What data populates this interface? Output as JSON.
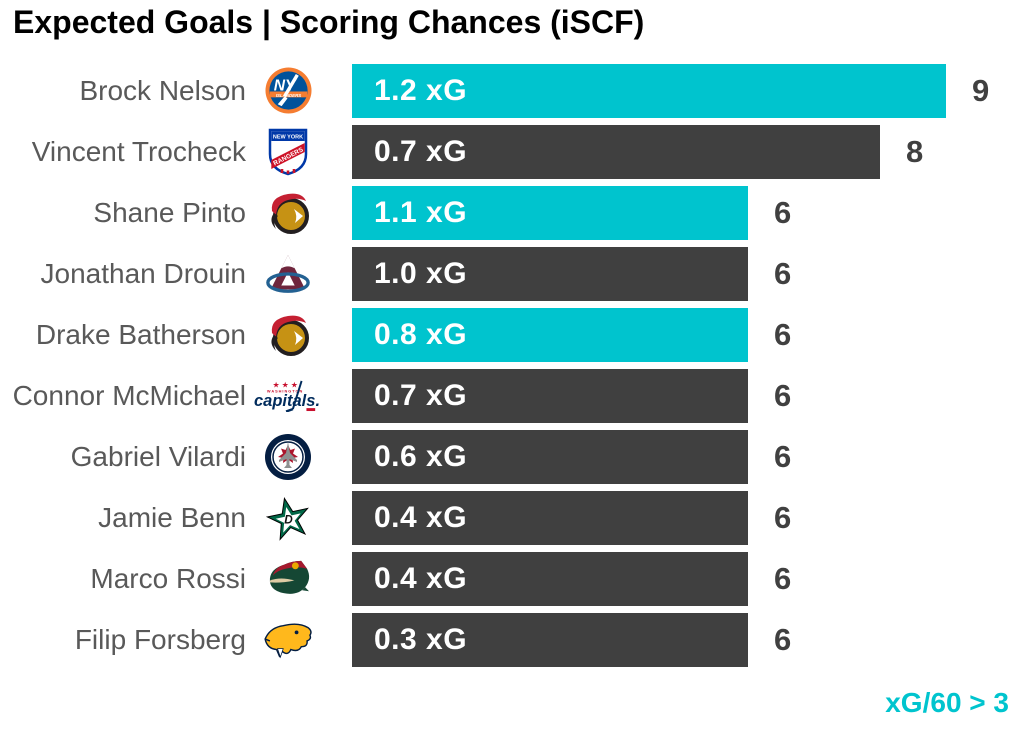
{
  "title": "Expected Goals | Scoring Chances (iSCF)",
  "footer": {
    "legend_label": "xG/60 > 3"
  },
  "colors": {
    "highlight_teal": "#00C4CE",
    "bar_dark": "#404040",
    "bar_text": "#FFFFFF",
    "player_name_text": "#595959",
    "count_text": "#404040",
    "title_text": "#000000"
  },
  "rows": [
    {
      "player": "Brock Nelson",
      "team": "New York Islanders",
      "logo_icon": "islanders-logo",
      "xg_label": "1.2 xG",
      "iscf": 9,
      "highlighted": true
    },
    {
      "player": "Vincent Trocheck",
      "team": "New York Rangers",
      "logo_icon": "rangers-logo",
      "xg_label": "0.7 xG",
      "iscf": 8,
      "highlighted": false
    },
    {
      "player": "Shane Pinto",
      "team": "Ottawa Senators",
      "logo_icon": "senators-logo",
      "xg_label": "1.1 xG",
      "iscf": 6,
      "highlighted": true
    },
    {
      "player": "Jonathan Drouin",
      "team": "Colorado Avalanche",
      "logo_icon": "avalanche-logo",
      "xg_label": "1.0 xG",
      "iscf": 6,
      "highlighted": false
    },
    {
      "player": "Drake Batherson",
      "team": "Ottawa Senators",
      "logo_icon": "senators-logo",
      "xg_label": "0.8 xG",
      "iscf": 6,
      "highlighted": true
    },
    {
      "player": "Connor McMichael",
      "team": "Washington Capitals",
      "logo_icon": "capitals-logo",
      "xg_label": "0.7 xG",
      "iscf": 6,
      "highlighted": false
    },
    {
      "player": "Gabriel Vilardi",
      "team": "Winnipeg Jets",
      "logo_icon": "jets-logo",
      "xg_label": "0.6 xG",
      "iscf": 6,
      "highlighted": false
    },
    {
      "player": "Jamie Benn",
      "team": "Dallas Stars",
      "logo_icon": "stars-logo",
      "xg_label": "0.4 xG",
      "iscf": 6,
      "highlighted": false
    },
    {
      "player": "Marco Rossi",
      "team": "Minnesota Wild",
      "logo_icon": "wild-logo",
      "xg_label": "0.4 xG",
      "iscf": 6,
      "highlighted": false
    },
    {
      "player": "Filip Forsberg",
      "team": "Nashville Predators",
      "logo_icon": "predators-logo",
      "xg_label": "0.3 xG",
      "iscf": 6,
      "highlighted": false
    }
  ],
  "chart_data": {
    "type": "bar",
    "orientation": "horizontal",
    "title": "Expected Goals | Scoring Chances (iSCF)",
    "categories": [
      "Brock Nelson",
      "Vincent Trocheck",
      "Shane Pinto",
      "Jonathan Drouin",
      "Drake Batherson",
      "Connor McMichael",
      "Gabriel Vilardi",
      "Jamie Benn",
      "Marco Rossi",
      "Filip Forsberg"
    ],
    "teams": [
      "New York Islanders",
      "New York Rangers",
      "Ottawa Senators",
      "Colorado Avalanche",
      "Ottawa Senators",
      "Washington Capitals",
      "Winnipeg Jets",
      "Dallas Stars",
      "Minnesota Wild",
      "Nashville Predators"
    ],
    "series": [
      {
        "name": "iSCF",
        "values": [
          9,
          8,
          6,
          6,
          6,
          6,
          6,
          6,
          6,
          6
        ]
      },
      {
        "name": "xG",
        "values": [
          1.2,
          0.7,
          1.1,
          1.0,
          0.8,
          0.7,
          0.6,
          0.4,
          0.4,
          0.3
        ]
      }
    ],
    "bar_value_labels": [
      "1.2 xG",
      "0.7 xG",
      "1.1 xG",
      "1.0 xG",
      "0.8 xG",
      "0.7 xG",
      "0.6 xG",
      "0.4 xG",
      "0.4 xG",
      "0.3 xG"
    ],
    "end_labels": [
      "9",
      "8",
      "6",
      "6",
      "6",
      "6",
      "6",
      "6",
      "6",
      "6"
    ],
    "highlighted_categories": [
      "Brock Nelson",
      "Shane Pinto",
      "Drake Batherson"
    ],
    "highlight_rule": "xG/60 > 3",
    "highlight_color": "#00C4CE",
    "bar_color": "#404040",
    "xlim": [
      0,
      10
    ],
    "grid": false,
    "axis_labels_visible": false,
    "legend_position": "bottom-right"
  }
}
